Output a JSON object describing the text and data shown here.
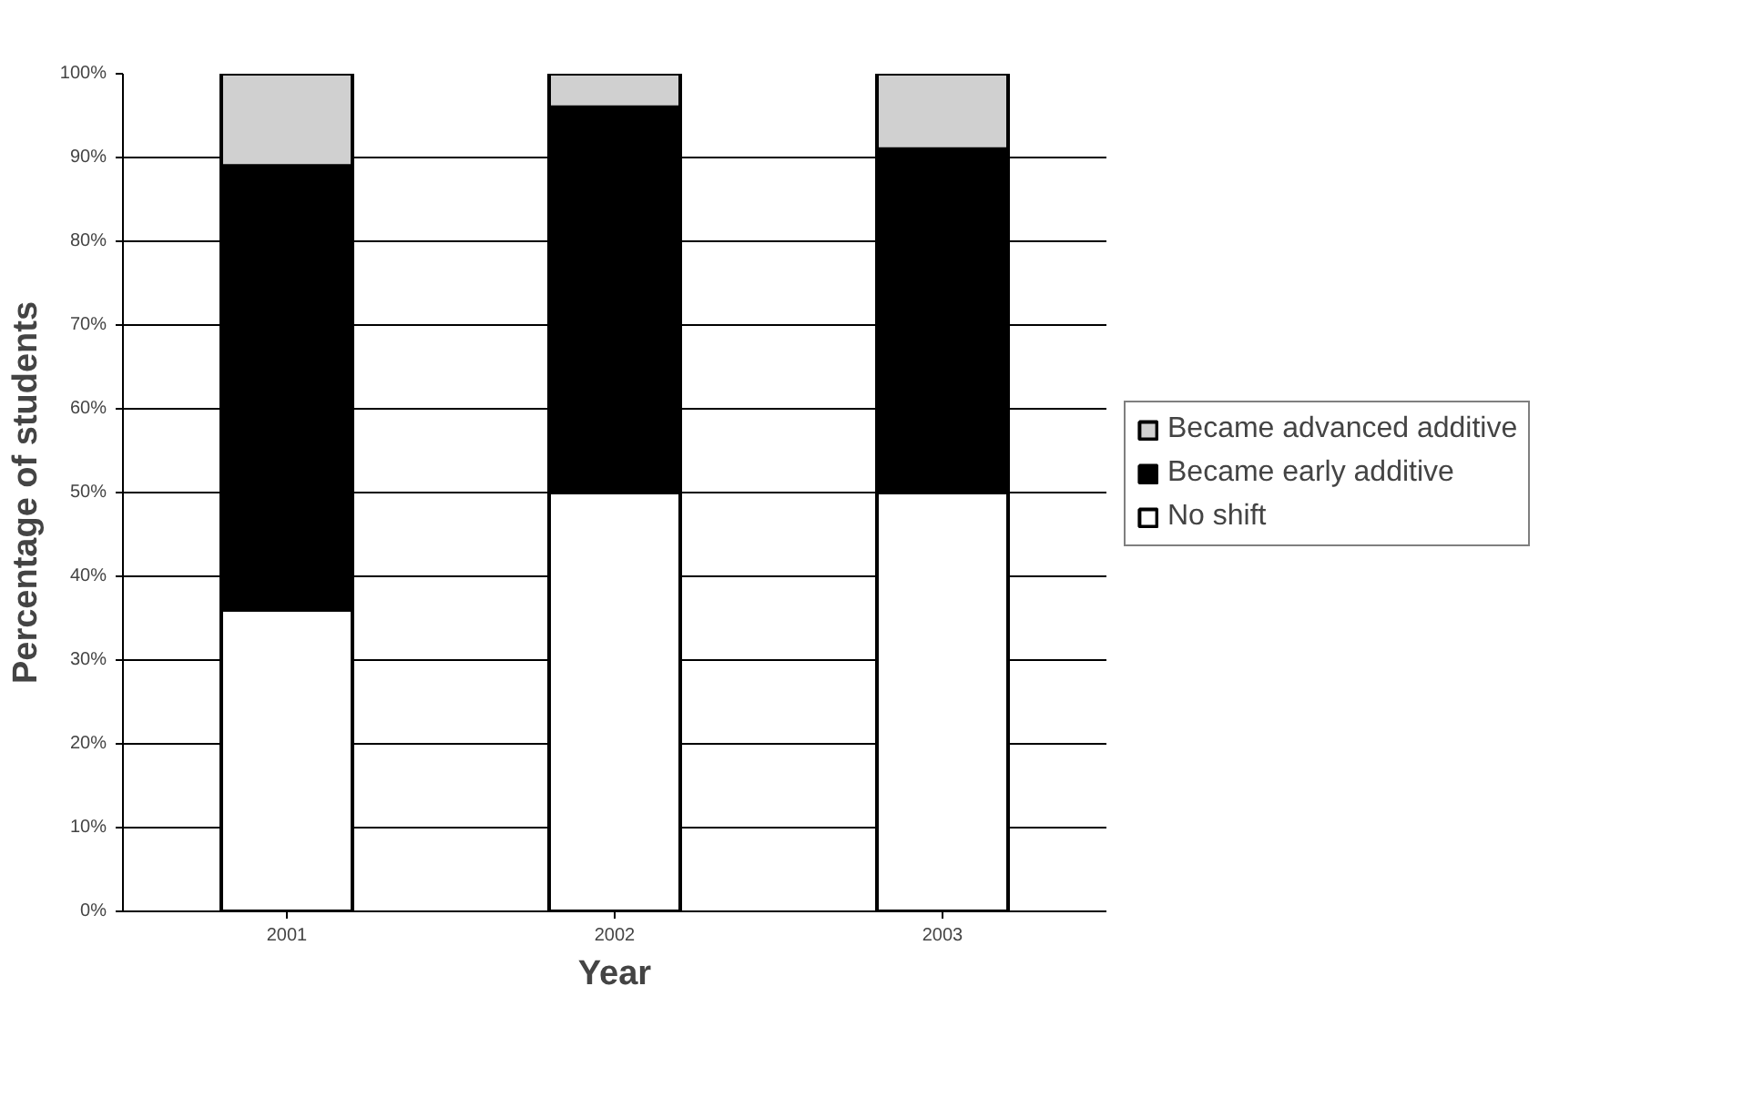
{
  "chart_data": {
    "type": "bar",
    "stacked": true,
    "xlabel": "Year",
    "ylabel": "Percentage of students",
    "categories": [
      "2001",
      "2002",
      "2003"
    ],
    "series": [
      {
        "name": "No shift",
        "color": "#ffffff",
        "values": [
          36,
          50,
          50
        ]
      },
      {
        "name": "Became early additive",
        "color": "#000000",
        "values": [
          53,
          46,
          41
        ]
      },
      {
        "name": "Became advanced additive",
        "color": "#d0d0d0",
        "values": [
          11,
          4,
          9
        ]
      }
    ],
    "ylim": [
      0,
      100
    ],
    "yticks": [
      {
        "value": 0,
        "label": "0%"
      },
      {
        "value": 10,
        "label": "10%"
      },
      {
        "value": 20,
        "label": "20%"
      },
      {
        "value": 30,
        "label": "30%"
      },
      {
        "value": 40,
        "label": "40%"
      },
      {
        "value": 50,
        "label": "50%"
      },
      {
        "value": 60,
        "label": "60%"
      },
      {
        "value": 70,
        "label": "70%"
      },
      {
        "value": 80,
        "label": "80%"
      },
      {
        "value": 90,
        "label": "90%"
      },
      {
        "value": 100,
        "label": "100%"
      }
    ],
    "grid": "y",
    "legend": "right"
  }
}
